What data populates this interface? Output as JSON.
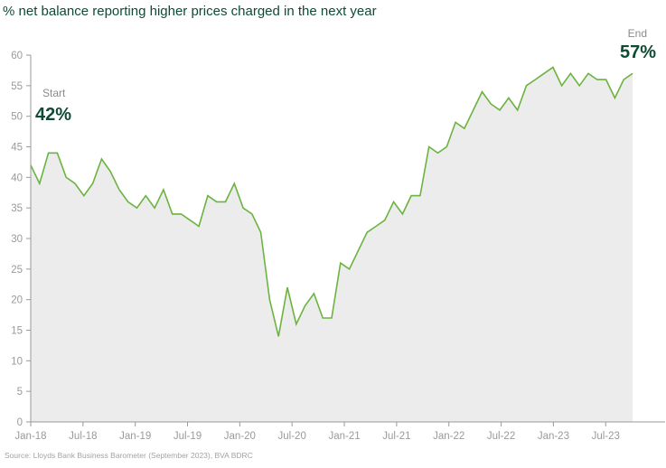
{
  "chart_data": {
    "type": "area",
    "title": "% net balance reporting higher prices charged in the next year",
    "xlabel": "",
    "ylabel": "",
    "ylim": [
      0,
      60
    ],
    "yticks": [
      0,
      5,
      10,
      15,
      20,
      25,
      30,
      35,
      40,
      45,
      50,
      55,
      60
    ],
    "xticks": [
      "Jan-18",
      "Jul-18",
      "Jan-19",
      "Jul-19",
      "Jan-20",
      "Jul-20",
      "Jan-21",
      "Jul-21",
      "Jan-22",
      "Jul-22",
      "Jan-23",
      "Jul-23"
    ],
    "x_start": "Jan-18",
    "x_end": "Sep-23",
    "grid": false,
    "series": [
      {
        "name": "% net balance",
        "color": "#6cb33f",
        "fill": "#ececec",
        "values": [
          42,
          39,
          44,
          44,
          40,
          39,
          37,
          39,
          43,
          41,
          38,
          36,
          35,
          37,
          35,
          38,
          34,
          34,
          33,
          32,
          37,
          36,
          36,
          39,
          35,
          34,
          31,
          20,
          14,
          22,
          16,
          19,
          21,
          17,
          17,
          26,
          25,
          28,
          31,
          32,
          33,
          36,
          34,
          37,
          37,
          45,
          44,
          45,
          49,
          48,
          51,
          54,
          52,
          51,
          53,
          51,
          55,
          56,
          57,
          58,
          55,
          57,
          55,
          57,
          56,
          56,
          53,
          56,
          57
        ]
      }
    ],
    "annotations": {
      "start": {
        "label": "Start",
        "value": "42%"
      },
      "end": {
        "label": "End",
        "value": "57%"
      }
    },
    "source": "Source: Lloyds Bank Business Barometer (September 2023), BVA BDRC"
  }
}
